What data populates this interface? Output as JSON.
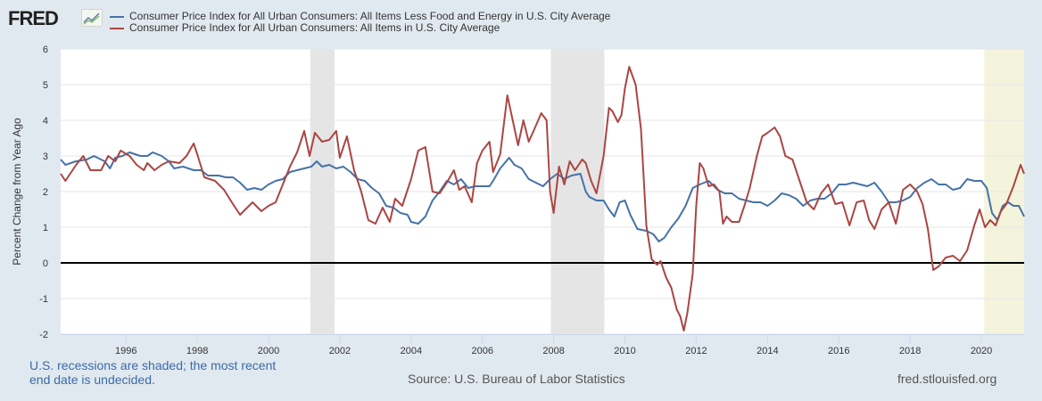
{
  "header": {
    "logo_text": "FRED",
    "logo_icon": "chart-line-icon"
  },
  "footer": {
    "recession_note": "U.S. recessions are shaded; the most recent end date is undecided.",
    "source": "Source: U.S. Bureau of Labor Statistics",
    "site": "fred.stlouisfed.org"
  },
  "chart_data": {
    "type": "line",
    "title": "",
    "xlabel": "",
    "ylabel": "Percent Change from Year Ago",
    "x_start": "1994-03",
    "x_end": "2021-02",
    "frequency": "monthly",
    "xlim": [
      1994.167,
      2021.2
    ],
    "ylim": [
      -2,
      6
    ],
    "yticks": [
      -2,
      -1,
      0,
      1,
      2,
      3,
      4,
      5,
      6
    ],
    "xticks": [
      1996,
      1998,
      2000,
      2002,
      2004,
      2006,
      2008,
      2010,
      2012,
      2014,
      2016,
      2018,
      2020
    ],
    "grid": true,
    "legend_position": "top",
    "recessions": [
      {
        "start": 2001.17,
        "end": 2001.85,
        "color": "#e5e5e5"
      },
      {
        "start": 2007.92,
        "end": 2009.42,
        "color": "#e5e5e5"
      },
      {
        "start": 2020.08,
        "end": 2021.2,
        "color": "#f4f4dc",
        "undecided": true
      }
    ],
    "series": [
      {
        "name": "Consumer Price Index for All Urban Consumers: All Items Less Food and Energy in U.S. City Average",
        "color": "#4572a7",
        "anchors": [
          [
            1994.17,
            2.9
          ],
          [
            1994.3,
            2.75
          ],
          [
            1994.6,
            2.85
          ],
          [
            1994.9,
            2.9
          ],
          [
            1995.1,
            3.0
          ],
          [
            1995.4,
            2.85
          ],
          [
            1995.55,
            2.65
          ],
          [
            1995.7,
            2.95
          ],
          [
            1995.9,
            3.0
          ],
          [
            1996.1,
            3.1
          ],
          [
            1996.4,
            3.0
          ],
          [
            1996.6,
            3.0
          ],
          [
            1996.75,
            3.1
          ],
          [
            1997.0,
            3.0
          ],
          [
            1997.2,
            2.85
          ],
          [
            1997.35,
            2.65
          ],
          [
            1997.6,
            2.7
          ],
          [
            1997.9,
            2.6
          ],
          [
            1998.1,
            2.6
          ],
          [
            1998.3,
            2.45
          ],
          [
            1998.6,
            2.45
          ],
          [
            1998.8,
            2.4
          ],
          [
            1999.0,
            2.4
          ],
          [
            1999.2,
            2.25
          ],
          [
            1999.4,
            2.05
          ],
          [
            1999.6,
            2.1
          ],
          [
            1999.8,
            2.05
          ],
          [
            2000.0,
            2.2
          ],
          [
            2000.2,
            2.3
          ],
          [
            2000.4,
            2.35
          ],
          [
            2000.6,
            2.55
          ],
          [
            2000.8,
            2.6
          ],
          [
            2001.0,
            2.65
          ],
          [
            2001.2,
            2.7
          ],
          [
            2001.35,
            2.85
          ],
          [
            2001.5,
            2.7
          ],
          [
            2001.7,
            2.75
          ],
          [
            2001.9,
            2.65
          ],
          [
            2002.1,
            2.7
          ],
          [
            2002.3,
            2.55
          ],
          [
            2002.5,
            2.35
          ],
          [
            2002.7,
            2.3
          ],
          [
            2002.9,
            2.1
          ],
          [
            2003.1,
            1.95
          ],
          [
            2003.3,
            1.6
          ],
          [
            2003.5,
            1.55
          ],
          [
            2003.7,
            1.4
          ],
          [
            2003.9,
            1.35
          ],
          [
            2004.0,
            1.15
          ],
          [
            2004.2,
            1.1
          ],
          [
            2004.4,
            1.3
          ],
          [
            2004.6,
            1.75
          ],
          [
            2004.8,
            2.0
          ],
          [
            2005.0,
            2.3
          ],
          [
            2005.2,
            2.2
          ],
          [
            2005.4,
            2.35
          ],
          [
            2005.6,
            2.1
          ],
          [
            2005.8,
            2.15
          ],
          [
            2006.0,
            2.15
          ],
          [
            2006.2,
            2.15
          ],
          [
            2006.3,
            2.3
          ],
          [
            2006.5,
            2.65
          ],
          [
            2006.75,
            2.95
          ],
          [
            2006.9,
            2.75
          ],
          [
            2007.1,
            2.65
          ],
          [
            2007.3,
            2.35
          ],
          [
            2007.5,
            2.25
          ],
          [
            2007.7,
            2.15
          ],
          [
            2007.9,
            2.35
          ],
          [
            2008.1,
            2.5
          ],
          [
            2008.3,
            2.35
          ],
          [
            2008.5,
            2.45
          ],
          [
            2008.75,
            2.5
          ],
          [
            2008.9,
            2.0
          ],
          [
            2009.0,
            1.85
          ],
          [
            2009.2,
            1.75
          ],
          [
            2009.4,
            1.75
          ],
          [
            2009.55,
            1.5
          ],
          [
            2009.7,
            1.3
          ],
          [
            2009.85,
            1.7
          ],
          [
            2010.0,
            1.75
          ],
          [
            2010.15,
            1.35
          ],
          [
            2010.35,
            0.95
          ],
          [
            2010.6,
            0.9
          ],
          [
            2010.8,
            0.8
          ],
          [
            2010.95,
            0.6
          ],
          [
            2011.1,
            0.7
          ],
          [
            2011.3,
            1.0
          ],
          [
            2011.5,
            1.25
          ],
          [
            2011.7,
            1.6
          ],
          [
            2011.9,
            2.1
          ],
          [
            2012.1,
            2.2
          ],
          [
            2012.35,
            2.3
          ],
          [
            2012.6,
            2.05
          ],
          [
            2012.8,
            1.95
          ],
          [
            2013.0,
            1.95
          ],
          [
            2013.2,
            1.8
          ],
          [
            2013.4,
            1.75
          ],
          [
            2013.6,
            1.7
          ],
          [
            2013.8,
            1.7
          ],
          [
            2014.0,
            1.6
          ],
          [
            2014.2,
            1.75
          ],
          [
            2014.4,
            1.95
          ],
          [
            2014.6,
            1.9
          ],
          [
            2014.8,
            1.8
          ],
          [
            2015.0,
            1.6
          ],
          [
            2015.2,
            1.75
          ],
          [
            2015.4,
            1.8
          ],
          [
            2015.6,
            1.8
          ],
          [
            2015.8,
            1.95
          ],
          [
            2016.0,
            2.2
          ],
          [
            2016.2,
            2.2
          ],
          [
            2016.4,
            2.25
          ],
          [
            2016.6,
            2.2
          ],
          [
            2016.8,
            2.15
          ],
          [
            2017.0,
            2.25
          ],
          [
            2017.2,
            2.0
          ],
          [
            2017.4,
            1.7
          ],
          [
            2017.6,
            1.7
          ],
          [
            2017.8,
            1.75
          ],
          [
            2018.0,
            1.85
          ],
          [
            2018.2,
            2.1
          ],
          [
            2018.4,
            2.25
          ],
          [
            2018.6,
            2.35
          ],
          [
            2018.8,
            2.2
          ],
          [
            2019.0,
            2.2
          ],
          [
            2019.2,
            2.05
          ],
          [
            2019.4,
            2.1
          ],
          [
            2019.6,
            2.35
          ],
          [
            2019.8,
            2.3
          ],
          [
            2020.0,
            2.3
          ],
          [
            2020.15,
            2.1
          ],
          [
            2020.3,
            1.4
          ],
          [
            2020.45,
            1.2
          ],
          [
            2020.6,
            1.6
          ],
          [
            2020.75,
            1.7
          ],
          [
            2020.9,
            1.6
          ],
          [
            2021.05,
            1.6
          ],
          [
            2021.2,
            1.3
          ]
        ]
      },
      {
        "name": "Consumer Price Index for All Urban Consumers: All Items in U.S. City Average",
        "color": "#aa4643",
        "anchors": [
          [
            1994.17,
            2.5
          ],
          [
            1994.3,
            2.3
          ],
          [
            1994.6,
            2.75
          ],
          [
            1994.8,
            3.0
          ],
          [
            1995.0,
            2.6
          ],
          [
            1995.3,
            2.6
          ],
          [
            1995.5,
            3.0
          ],
          [
            1995.7,
            2.85
          ],
          [
            1995.85,
            3.15
          ],
          [
            1996.1,
            3.0
          ],
          [
            1996.3,
            2.75
          ],
          [
            1996.5,
            2.6
          ],
          [
            1996.6,
            2.8
          ],
          [
            1996.8,
            2.6
          ],
          [
            1997.0,
            2.75
          ],
          [
            1997.2,
            2.85
          ],
          [
            1997.5,
            2.8
          ],
          [
            1997.7,
            3.0
          ],
          [
            1997.9,
            3.35
          ],
          [
            1998.0,
            3.05
          ],
          [
            1998.2,
            2.4
          ],
          [
            1998.5,
            2.3
          ],
          [
            1998.75,
            2.05
          ],
          [
            1999.0,
            1.65
          ],
          [
            1999.2,
            1.35
          ],
          [
            1999.4,
            1.55
          ],
          [
            1999.55,
            1.7
          ],
          [
            1999.8,
            1.45
          ],
          [
            2000.0,
            1.6
          ],
          [
            2000.2,
            1.7
          ],
          [
            2000.4,
            2.2
          ],
          [
            2000.6,
            2.7
          ],
          [
            2000.8,
            3.1
          ],
          [
            2001.0,
            3.7
          ],
          [
            2001.15,
            3.0
          ],
          [
            2001.3,
            3.65
          ],
          [
            2001.5,
            3.4
          ],
          [
            2001.7,
            3.45
          ],
          [
            2001.9,
            3.7
          ],
          [
            2002.0,
            2.95
          ],
          [
            2002.2,
            3.55
          ],
          [
            2002.4,
            2.6
          ],
          [
            2002.6,
            2.0
          ],
          [
            2002.8,
            1.2
          ],
          [
            2003.0,
            1.1
          ],
          [
            2003.2,
            1.55
          ],
          [
            2003.4,
            1.15
          ],
          [
            2003.55,
            1.8
          ],
          [
            2003.75,
            1.6
          ],
          [
            2004.0,
            2.35
          ],
          [
            2004.2,
            3.15
          ],
          [
            2004.4,
            3.25
          ],
          [
            2004.6,
            2.0
          ],
          [
            2004.8,
            1.95
          ],
          [
            2005.0,
            2.25
          ],
          [
            2005.2,
            2.6
          ],
          [
            2005.35,
            2.05
          ],
          [
            2005.5,
            2.15
          ],
          [
            2005.7,
            1.7
          ],
          [
            2005.85,
            2.8
          ],
          [
            2006.0,
            3.15
          ],
          [
            2006.2,
            3.4
          ],
          [
            2006.3,
            2.55
          ],
          [
            2006.5,
            3.05
          ],
          [
            2006.7,
            4.7
          ],
          [
            2006.85,
            4.0
          ],
          [
            2007.0,
            3.3
          ],
          [
            2007.15,
            4.0
          ],
          [
            2007.3,
            3.4
          ],
          [
            2007.5,
            3.85
          ],
          [
            2007.65,
            4.2
          ],
          [
            2007.8,
            4.0
          ],
          [
            2007.9,
            2.0
          ],
          [
            2008.0,
            1.4
          ],
          [
            2008.15,
            2.7
          ],
          [
            2008.3,
            2.2
          ],
          [
            2008.45,
            2.85
          ],
          [
            2008.6,
            2.6
          ],
          [
            2008.8,
            2.9
          ],
          [
            2008.9,
            2.8
          ],
          [
            2009.05,
            2.3
          ],
          [
            2009.2,
            1.95
          ],
          [
            2009.4,
            3.0
          ],
          [
            2009.55,
            4.35
          ],
          [
            2009.65,
            4.25
          ],
          [
            2009.8,
            3.95
          ],
          [
            2009.9,
            4.15
          ],
          [
            2010.0,
            4.9
          ],
          [
            2010.12,
            5.5
          ],
          [
            2010.3,
            5.0
          ],
          [
            2010.45,
            3.75
          ],
          [
            2010.6,
            1.05
          ],
          [
            2010.75,
            0.1
          ],
          [
            2010.9,
            -0.05
          ],
          [
            2011.0,
            0.05
          ],
          [
            2011.15,
            -0.4
          ],
          [
            2011.3,
            -0.7
          ],
          [
            2011.45,
            -1.3
          ],
          [
            2011.55,
            -1.5
          ],
          [
            2011.65,
            -1.9
          ],
          [
            2011.75,
            -1.4
          ],
          [
            2011.9,
            -0.3
          ],
          [
            2012.0,
            1.6
          ],
          [
            2012.1,
            2.8
          ],
          [
            2012.2,
            2.65
          ],
          [
            2012.35,
            2.15
          ],
          [
            2012.5,
            2.2
          ],
          [
            2012.65,
            2.0
          ],
          [
            2012.75,
            1.1
          ],
          [
            2012.85,
            1.3
          ],
          [
            2013.0,
            1.15
          ],
          [
            2013.2,
            1.15
          ],
          [
            2013.35,
            1.6
          ],
          [
            2013.5,
            2.1
          ],
          [
            2013.7,
            3.0
          ],
          [
            2013.85,
            3.55
          ],
          [
            2014.0,
            3.65
          ],
          [
            2014.2,
            3.8
          ],
          [
            2014.35,
            3.55
          ],
          [
            2014.5,
            3.0
          ],
          [
            2014.7,
            2.9
          ],
          [
            2014.9,
            2.3
          ],
          [
            2015.1,
            1.7
          ],
          [
            2015.3,
            1.5
          ],
          [
            2015.5,
            1.95
          ],
          [
            2015.7,
            2.2
          ],
          [
            2015.9,
            1.65
          ],
          [
            2016.1,
            1.7
          ],
          [
            2016.3,
            1.05
          ],
          [
            2016.5,
            1.7
          ],
          [
            2016.7,
            1.75
          ],
          [
            2016.85,
            1.2
          ],
          [
            2017.0,
            0.95
          ],
          [
            2017.2,
            1.5
          ],
          [
            2017.4,
            1.7
          ],
          [
            2017.6,
            1.1
          ],
          [
            2017.8,
            2.05
          ],
          [
            2018.0,
            2.2
          ],
          [
            2018.2,
            2.0
          ],
          [
            2018.35,
            1.65
          ],
          [
            2018.5,
            0.95
          ],
          [
            2018.65,
            -0.2
          ],
          [
            2018.8,
            -0.1
          ],
          [
            2019.0,
            0.15
          ],
          [
            2019.2,
            0.2
          ],
          [
            2019.4,
            0.05
          ],
          [
            2019.6,
            0.35
          ],
          [
            2019.8,
            1.05
          ],
          [
            2019.95,
            1.5
          ],
          [
            2020.1,
            1.0
          ],
          [
            2020.25,
            1.2
          ],
          [
            2020.4,
            1.05
          ],
          [
            2020.55,
            1.45
          ],
          [
            2020.7,
            1.65
          ],
          [
            2020.9,
            2.15
          ],
          [
            2021.1,
            2.75
          ],
          [
            2021.2,
            2.5
          ]
        ]
      }
    ]
  }
}
